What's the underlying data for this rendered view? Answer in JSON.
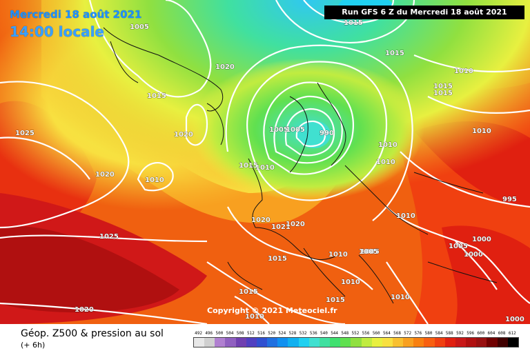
{
  "title": {
    "date": "Mercredi 18 août 2021",
    "time": "14:00 locale"
  },
  "run_label": "Run GFS 6 Z du Mercredi 18 août 2021",
  "copyright": "Copyright © 2021 Meteociel.fr",
  "legend": {
    "title": "Géop. Z500 & pression au sol",
    "subtitle": "(+ 6h)",
    "scale_values": [
      "492",
      "496",
      "500",
      "504",
      "508",
      "512",
      "516",
      "520",
      "524",
      "528",
      "532",
      "536",
      "540",
      "544",
      "548",
      "552",
      "556",
      "560",
      "564",
      "568",
      "572",
      "576",
      "580",
      "584",
      "588",
      "592",
      "596",
      "600",
      "604",
      "608",
      "612"
    ],
    "scale_colors": [
      "#e8e8e8",
      "#d0d0d0",
      "#b080d0",
      "#9060c0",
      "#7040b0",
      "#5040c0",
      "#3050d0",
      "#2070e0",
      "#1090f0",
      "#10b0f0",
      "#20d0f0",
      "#40e0d0",
      "#40e0a0",
      "#40e070",
      "#60e050",
      "#90e040",
      "#c0ec40",
      "#e8f040",
      "#f8e040",
      "#f8c030",
      "#f8a020",
      "#f88010",
      "#f86010",
      "#f04010",
      "#e02010",
      "#c81818",
      "#b01010",
      "#981010",
      "#700000",
      "#400000",
      "#000000"
    ]
  },
  "isobars": [
    "1005",
    "1015",
    "1020",
    "1015",
    "1025",
    "1020",
    "1010",
    "1020",
    "1025",
    "1020",
    "1005",
    "1005",
    "990",
    "1010",
    "1015",
    "1010",
    "1010",
    "1020",
    "1021",
    "1020",
    "1015",
    "1010",
    "1010",
    "1005",
    "1010",
    "1015",
    "1015",
    "1010",
    "1015",
    "1010",
    "1010",
    "1015",
    "1015",
    "1010",
    "1005",
    "995",
    "1000",
    "1000",
    "1005",
    "1000"
  ]
}
